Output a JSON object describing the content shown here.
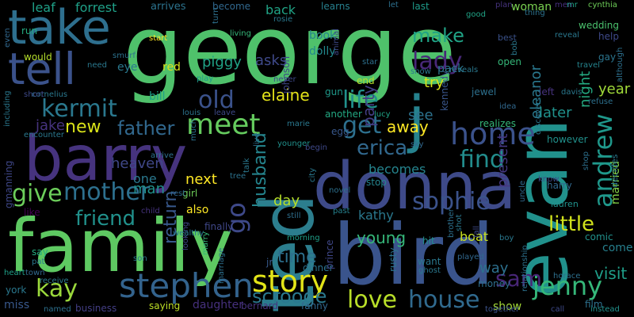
{
  "words": [
    {
      "text": "george",
      "color": "#4fc16b"
    },
    {
      "text": "barry",
      "color": "#46337e"
    },
    {
      "text": "family",
      "color": "#5ec962"
    },
    {
      "text": "bird",
      "color": "#3a548c"
    },
    {
      "text": "donna",
      "color": "#3e4a89"
    },
    {
      "text": "ted",
      "color": "#2c7e8e"
    },
    {
      "text": "evan",
      "color": "#21918c"
    },
    {
      "text": "take",
      "color": "#2e6f8e"
    },
    {
      "text": "tell",
      "color": "#3b528b"
    },
    {
      "text": "stephen",
      "color": "#33638d"
    },
    {
      "text": "story",
      "color": "#e2e418"
    },
    {
      "text": "j",
      "color": "#26828e"
    },
    {
      "text": "home",
      "color": "#3b528b"
    },
    {
      "text": "kermit",
      "color": "#2a788e"
    },
    {
      "text": "mother",
      "color": "#2d708e"
    },
    {
      "text": "meet",
      "color": "#65cb5e"
    },
    {
      "text": "kay",
      "color": "#9bd93c"
    },
    {
      "text": "jenny",
      "color": "#35b779"
    },
    {
      "text": "andrew",
      "color": "#1f988b"
    },
    {
      "text": "house",
      "color": "#306a8e"
    },
    {
      "text": "love",
      "color": "#b8de29"
    },
    {
      "text": "sophie",
      "color": "#3b528b"
    },
    {
      "text": "friend",
      "color": "#21918c"
    },
    {
      "text": "give",
      "color": "#6ccd5a"
    },
    {
      "text": "scrooge",
      "color": "#2a788e"
    },
    {
      "text": "lady",
      "color": "#482878"
    },
    {
      "text": "erica",
      "color": "#31688e"
    },
    {
      "text": "go",
      "color": "#3e4989"
    },
    {
      "text": "old",
      "color": "#3b528b"
    },
    {
      "text": "little",
      "color": "#d0e11c"
    },
    {
      "text": "life",
      "color": "#21918c"
    },
    {
      "text": "make",
      "color": "#20a386"
    },
    {
      "text": "get",
      "color": "#2d708e"
    },
    {
      "text": "find",
      "color": "#228d8d"
    },
    {
      "text": "father",
      "color": "#31688e"
    },
    {
      "text": "return",
      "color": "#38588c"
    },
    {
      "text": "husband",
      "color": "#25858e"
    },
    {
      "text": "sam",
      "color": "#482677"
    },
    {
      "text": "new",
      "color": "#d8e219"
    },
    {
      "text": "jake",
      "color": "#46337e"
    },
    {
      "text": "elaine",
      "color": "#e5e419"
    },
    {
      "text": "party",
      "color": "#433e85"
    },
    {
      "text": "time",
      "color": "#2d708e"
    },
    {
      "text": "young",
      "color": "#35b779"
    },
    {
      "text": "away",
      "color": "#fde725"
    },
    {
      "text": "visit",
      "color": "#1f9e89"
    },
    {
      "text": "present",
      "color": "#453781"
    },
    {
      "text": "eleanor",
      "color": "#2a788e"
    },
    {
      "text": "night",
      "color": "#25ab82"
    },
    {
      "text": "kennedy",
      "color": "#39568c"
    },
    {
      "text": "heaven",
      "color": "#3f4788"
    },
    {
      "text": "man",
      "color": "#21918c"
    },
    {
      "text": "next",
      "color": "#fde725"
    },
    {
      "text": "one",
      "color": "#2a788e"
    },
    {
      "text": "see",
      "color": "#2c728e"
    },
    {
      "text": "try",
      "color": "#dae319"
    },
    {
      "text": "day",
      "color": "#b5de2b"
    },
    {
      "text": "kathy",
      "color": "#2a788e"
    },
    {
      "text": "becomes",
      "color": "#25848e"
    },
    {
      "text": "way",
      "color": "#2d708e"
    },
    {
      "text": "later",
      "color": "#20928c"
    },
    {
      "text": "year",
      "color": "#a0da39"
    },
    {
      "text": "married",
      "color": "#86d549"
    },
    {
      "text": "asks",
      "color": "#3e4989"
    },
    {
      "text": "back",
      "color": "#20a486"
    },
    {
      "text": "forrest",
      "color": "#1fa088"
    },
    {
      "text": "leaf",
      "color": "#1fa188"
    },
    {
      "text": "arrives",
      "color": "#2c738e"
    },
    {
      "text": "become",
      "color": "#31688e"
    },
    {
      "text": "learns",
      "color": "#27808e"
    },
    {
      "text": "last",
      "color": "#1e9b8a"
    },
    {
      "text": "pack",
      "color": "#2b758e"
    },
    {
      "text": "woman",
      "color": "#7ad151"
    },
    {
      "text": "men",
      "color": "#46307e"
    },
    {
      "text": "wedding",
      "color": "#4ac16d"
    },
    {
      "text": "help",
      "color": "#3e4989"
    },
    {
      "text": "piggy",
      "color": "#20a386"
    },
    {
      "text": "johnson",
      "color": "#3f4788"
    },
    {
      "text": "book",
      "color": "#25858e"
    },
    {
      "text": "dolly",
      "color": "#23898e"
    },
    {
      "text": "red",
      "color": "#d8e219"
    },
    {
      "text": "bill",
      "color": "#1fa088"
    },
    {
      "text": "eye",
      "color": "#2a788e"
    },
    {
      "text": "would",
      "color": "#b5de2b"
    },
    {
      "text": "run",
      "color": "#25ac82"
    },
    {
      "text": "cornelius",
      "color": "#2a788e"
    },
    {
      "text": "gun",
      "color": "#1f998a"
    },
    {
      "text": "end",
      "color": "#b5de2b"
    },
    {
      "text": "jewel",
      "color": "#2d708e"
    },
    {
      "text": "another",
      "color": "#23a983"
    },
    {
      "text": "realizes",
      "color": "#35b779"
    },
    {
      "text": "however",
      "color": "#21918c"
    },
    {
      "text": "open",
      "color": "#35b779"
    },
    {
      "text": "left",
      "color": "#46337e"
    },
    {
      "text": "gay",
      "color": "#2b758e"
    },
    {
      "text": "girl",
      "color": "#6ece58"
    },
    {
      "text": "also",
      "color": "#fde725"
    },
    {
      "text": "finally",
      "color": "#3f4788"
    },
    {
      "text": "marry",
      "color": "#35b779"
    },
    {
      "text": "jr",
      "color": "#38598c"
    },
    {
      "text": "dinner",
      "color": "#2c728e"
    },
    {
      "text": "prince",
      "color": "#3f4788"
    },
    {
      "text": "hit",
      "color": "#21918c"
    },
    {
      "text": "want",
      "color": "#2a788e"
    },
    {
      "text": "boat",
      "color": "#c8e020"
    },
    {
      "text": "film",
      "color": "#2d708e"
    },
    {
      "text": "comic",
      "color": "#21918c"
    },
    {
      "text": "come",
      "color": "#27808e"
    },
    {
      "text": "show",
      "color": "#a5db36"
    },
    {
      "text": "money",
      "color": "#2e6f8e"
    },
    {
      "text": "miss",
      "color": "#38588c"
    },
    {
      "text": "daughter",
      "color": "#46307e"
    },
    {
      "text": "saying",
      "color": "#bddf26"
    },
    {
      "text": "bernard",
      "color": "#46337e"
    },
    {
      "text": "fanny",
      "color": "#31688e"
    },
    {
      "text": "business",
      "color": "#433e85"
    },
    {
      "text": "york",
      "color": "#2a788e"
    },
    {
      "text": "heart",
      "color": "#1fa188"
    },
    {
      "text": "say",
      "color": "#26ad81"
    },
    {
      "text": "like",
      "color": "#440154"
    },
    {
      "text": "gmanning",
      "color": "#3f4788"
    },
    {
      "text": "harry",
      "color": "#31688e"
    },
    {
      "text": "lauren",
      "color": "#21918c"
    },
    {
      "text": "reveal",
      "color": "#2a788e"
    },
    {
      "text": "best",
      "color": "#3b528b"
    },
    {
      "text": "plan",
      "color": "#46337e"
    },
    {
      "text": "good",
      "color": "#20a486"
    },
    {
      "text": "cynthia",
      "color": "#6ece58"
    },
    {
      "text": "thing",
      "color": "#2c728e"
    },
    {
      "text": "mr",
      "color": "#20a386"
    },
    {
      "text": "travel",
      "color": "#25848e"
    },
    {
      "text": "decides",
      "color": "#2a788e"
    },
    {
      "text": "know",
      "color": "#3e4989"
    },
    {
      "text": "rusty",
      "color": "#2c728e"
    },
    {
      "text": "relationship",
      "color": "#2c728e"
    },
    {
      "text": "horace",
      "color": "#2d708e"
    },
    {
      "text": "together",
      "color": "#3b528b"
    },
    {
      "text": "call",
      "color": "#3e4989"
    },
    {
      "text": "instead",
      "color": "#21918c"
    },
    {
      "text": "ghost",
      "color": "#2a788e"
    },
    {
      "text": "played",
      "color": "#31688e"
    },
    {
      "text": "rest",
      "color": "#31688e"
    },
    {
      "text": "child",
      "color": "#46337e"
    },
    {
      "text": "tree",
      "color": "#2c728e"
    },
    {
      "text": "novel",
      "color": "#2d708e"
    },
    {
      "text": "past",
      "color": "#26828e"
    },
    {
      "text": "still",
      "color": "#2e6f8e"
    },
    {
      "text": "morning",
      "color": "#1fa088"
    },
    {
      "text": "marie",
      "color": "#2a788e"
    },
    {
      "text": "younger",
      "color": "#21918c"
    },
    {
      "text": "begin",
      "color": "#3e4989"
    },
    {
      "text": "egg",
      "color": "#38588c"
    },
    {
      "text": "stop",
      "color": "#25848e"
    },
    {
      "text": "sky",
      "color": "#31688e"
    },
    {
      "text": "lucy",
      "color": "#20a486"
    },
    {
      "text": "louis",
      "color": "#2c728e"
    },
    {
      "text": "leave",
      "color": "#3e4989"
    },
    {
      "text": "start",
      "color": "#fde725"
    },
    {
      "text": "living",
      "color": "#35b779"
    },
    {
      "text": "rosie",
      "color": "#2a788e"
    },
    {
      "text": "play",
      "color": "#1f998a"
    },
    {
      "text": "never",
      "color": "#3e4989"
    },
    {
      "text": "snow",
      "color": "#2a788e"
    },
    {
      "text": "smurf",
      "color": "#2c728e"
    },
    {
      "text": "need",
      "color": "#2a788e"
    },
    {
      "text": "even",
      "color": "#31688e"
    },
    {
      "text": "short",
      "color": "#3e4989"
    },
    {
      "text": "encounter",
      "color": "#2a788e"
    },
    {
      "text": "talk",
      "color": "#2a788e"
    },
    {
      "text": "live",
      "color": "#2d708e"
    },
    {
      "text": "much",
      "color": "#2c728e"
    },
    {
      "text": "town",
      "color": "#31688e"
    },
    {
      "text": "pat",
      "color": "#2a788e"
    },
    {
      "text": "son",
      "color": "#2a788e"
    },
    {
      "text": "marriage",
      "color": "#2d708e"
    },
    {
      "text": "receive",
      "color": "#2a788e"
    },
    {
      "text": "named",
      "color": "#2d708e"
    },
    {
      "text": "including",
      "color": "#2a788e"
    },
    {
      "text": "star",
      "color": "#2d708e"
    },
    {
      "text": "city",
      "color": "#2a788e"
    },
    {
      "text": "brother",
      "color": "#2d708e"
    },
    {
      "text": "shot",
      "color": "#2a788e"
    },
    {
      "text": "fall",
      "color": "#3e4989"
    },
    {
      "text": "idea",
      "color": "#31688e"
    },
    {
      "text": "reveals",
      "color": "#2a788e"
    },
    {
      "text": "animal",
      "color": "#3e4989"
    },
    {
      "text": "bob",
      "color": "#2a788e"
    },
    {
      "text": "uncle",
      "color": "#31688e"
    },
    {
      "text": "davis",
      "color": "#2a788e"
    },
    {
      "text": "refuse",
      "color": "#2d708e"
    },
    {
      "text": "discovers",
      "color": "#2a788e"
    },
    {
      "text": "shop",
      "color": "#2d708e"
    },
    {
      "text": "boy",
      "color": "#2a788e"
    },
    {
      "text": "let",
      "color": "#2d708e"
    },
    {
      "text": "arrive",
      "color": "#2d708e"
    },
    {
      "text": "looking",
      "color": "#3e4989"
    },
    {
      "text": "wealthy",
      "color": "#2a788e"
    },
    {
      "text": "turn",
      "color": "#2d708e"
    },
    {
      "text": "although",
      "color": "#2d708e"
    }
  ]
}
